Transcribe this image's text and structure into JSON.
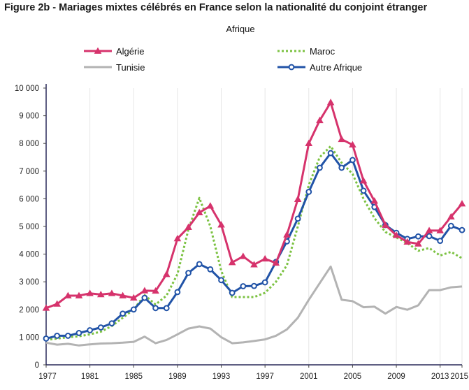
{
  "figure": {
    "title": "Figure 2b - Mariages mixtes célébrés en France selon la nationalité du conjoint étranger"
  },
  "chart_data": {
    "type": "line",
    "subtitle": "Afrique",
    "xlabel": "",
    "ylabel": "",
    "x": [
      1977,
      1978,
      1979,
      1980,
      1981,
      1982,
      1983,
      1984,
      1985,
      1986,
      1987,
      1988,
      1989,
      1990,
      1991,
      1992,
      1993,
      1994,
      1995,
      1996,
      1997,
      1998,
      1999,
      2000,
      2001,
      2002,
      2003,
      2004,
      2005,
      2006,
      2007,
      2008,
      2009,
      2010,
      2011,
      2012,
      2013,
      2014,
      2015
    ],
    "xlim": [
      1977,
      2015
    ],
    "x_ticks": [
      "1977",
      "1981",
      "1985",
      "1989",
      "1993",
      "1997",
      "2001",
      "2005",
      "2009",
      "2013",
      "2015"
    ],
    "ylim": [
      0,
      10000
    ],
    "y_ticks": [
      "0",
      "1 000",
      "2 000",
      "3 000",
      "4 000",
      "5 000",
      "6 000",
      "7 000",
      "8 000",
      "9 000",
      "10 000"
    ],
    "grid": "vertical",
    "legend_position": "top",
    "series": [
      {
        "name": "Algérie",
        "color": "#d6336c",
        "style": "solid",
        "marker": "triangle",
        "values": [
          2050,
          2200,
          2500,
          2500,
          2580,
          2540,
          2580,
          2500,
          2420,
          2680,
          2670,
          3270,
          4560,
          4970,
          5500,
          5740,
          5060,
          3700,
          3920,
          3620,
          3830,
          3680,
          4700,
          5980,
          8000,
          8830,
          9480,
          8150,
          7950,
          6650,
          5920,
          5050,
          4680,
          4440,
          4370,
          4850,
          4850,
          5350,
          5820
        ]
      },
      {
        "name": "Maroc",
        "color": "#7cc242",
        "style": "dotted",
        "marker": "none",
        "values": [
          900,
          950,
          1000,
          1030,
          1100,
          1200,
          1400,
          1700,
          2000,
          2520,
          2180,
          2500,
          3280,
          4900,
          6030,
          5000,
          3400,
          2450,
          2450,
          2450,
          2600,
          3000,
          3600,
          5000,
          6500,
          7500,
          7900,
          7300,
          6900,
          6000,
          5300,
          4800,
          4600,
          4400,
          4120,
          4220,
          3950,
          4080,
          3850
        ]
      },
      {
        "name": "Tunisie",
        "color": "#b3b3b3",
        "style": "solid",
        "marker": "none",
        "values": [
          800,
          730,
          760,
          700,
          740,
          770,
          780,
          800,
          830,
          1020,
          780,
          900,
          1100,
          1310,
          1390,
          1310,
          1000,
          780,
          810,
          860,
          920,
          1050,
          1280,
          1700,
          2350,
          2950,
          3550,
          2350,
          2300,
          2080,
          2100,
          1850,
          2090,
          1990,
          2150,
          2700,
          2700,
          2800,
          2830
        ]
      },
      {
        "name": "Autre Afrique",
        "color": "#2153a7",
        "style": "solid",
        "marker": "circle",
        "values": [
          950,
          1050,
          1050,
          1150,
          1250,
          1350,
          1500,
          1850,
          2000,
          2420,
          2050,
          2050,
          2630,
          3320,
          3640,
          3450,
          3060,
          2600,
          2840,
          2850,
          2980,
          3720,
          4460,
          5280,
          6250,
          7120,
          7650,
          7120,
          7400,
          6290,
          5700,
          5050,
          4770,
          4550,
          4640,
          4650,
          4480,
          5020,
          4870
        ]
      }
    ]
  }
}
